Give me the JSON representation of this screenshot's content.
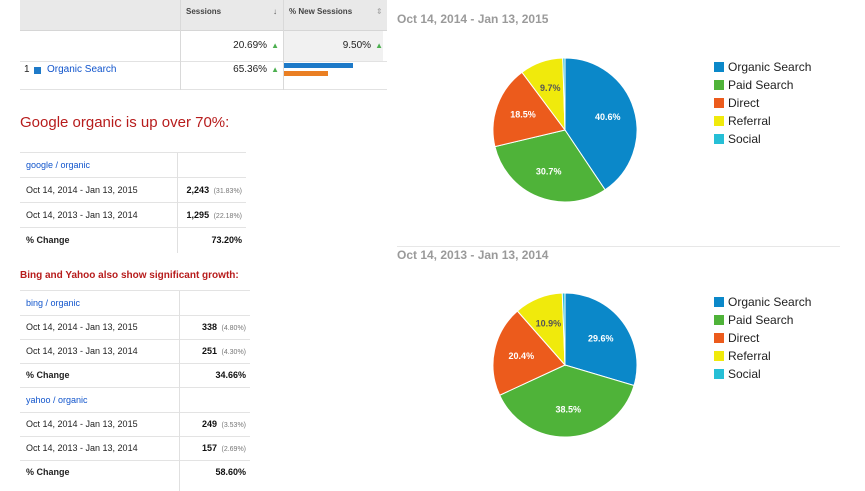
{
  "top_table": {
    "columns": [
      {
        "label": "Sessions",
        "sort": "↓"
      },
      {
        "label": "% New Sessions",
        "sort": "⇕"
      }
    ],
    "totals": {
      "sessions": "20.69%",
      "new_sessions": "9.50%"
    },
    "row": {
      "index": "1",
      "name": "Organic Search",
      "sessions": "65.36%",
      "bar_sessions_pct": 0.7,
      "bar_new_pct": 0.45
    },
    "colors": {
      "bar_blue": "#1e7ac8",
      "bar_orange": "#ea7f23",
      "swatch": "#1e7ac8"
    }
  },
  "google": {
    "heading": "Google organic is up over 70%:",
    "source": "google / organic",
    "rows": [
      {
        "label": "Oct 14, 2014 - Jan 13, 2015",
        "value": "2,243",
        "pct": "(31.83%)"
      },
      {
        "label": "Oct 14, 2013 - Jan 13, 2014",
        "value": "1,295",
        "pct": "(22.18%)"
      }
    ],
    "change_label": "% Change",
    "change_value": "73.20%"
  },
  "bing_yahoo": {
    "heading": "Bing and Yahoo also show significant growth:",
    "bing": {
      "source": "bing / organic",
      "rows": [
        {
          "label": "Oct 14, 2014 - Jan 13, 2015",
          "value": "338",
          "pct": "(4.80%)"
        },
        {
          "label": "Oct 14, 2013 - Jan 13, 2014",
          "value": "251",
          "pct": "(4.30%)"
        }
      ],
      "change_label": "% Change",
      "change_value": "34.66%"
    },
    "yahoo": {
      "source": "yahoo / organic",
      "rows": [
        {
          "label": "Oct 14, 2014 - Jan 13, 2015",
          "value": "249",
          "pct": "(3.53%)"
        },
        {
          "label": "Oct 14, 2013 - Jan 13, 2014",
          "value": "157",
          "pct": "(2.69%)"
        }
      ],
      "change_label": "% Change",
      "change_value": "58.60%"
    }
  },
  "chart_data": [
    {
      "type": "pie",
      "title": "Oct 14, 2014 - Jan 13, 2015",
      "categories": [
        "Organic Search",
        "Paid Search",
        "Direct",
        "Referral",
        "Social"
      ],
      "values": [
        40.6,
        30.7,
        18.5,
        9.7,
        0.5
      ],
      "labels": [
        "40.6%",
        "30.7%",
        "18.5%",
        "9.7%",
        ""
      ],
      "colors": [
        "#0b88c9",
        "#4fb339",
        "#ec5b1c",
        "#f0ea0c",
        "#26bfd6"
      ],
      "legend": "right"
    },
    {
      "type": "pie",
      "title": "Oct 14, 2013 - Jan 13, 2014",
      "categories": [
        "Organic Search",
        "Paid Search",
        "Direct",
        "Referral",
        "Social"
      ],
      "values": [
        29.6,
        38.5,
        20.4,
        10.9,
        0.6
      ],
      "labels": [
        "29.6%",
        "38.5%",
        "20.4%",
        "10.9%",
        ""
      ],
      "colors": [
        "#0b88c9",
        "#4fb339",
        "#ec5b1c",
        "#f0ea0c",
        "#26bfd6"
      ],
      "legend": "right"
    }
  ]
}
